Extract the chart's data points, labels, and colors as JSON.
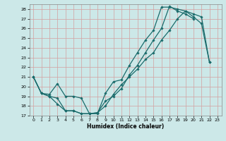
{
  "title": "",
  "xlabel": "Humidex (Indice chaleur)",
  "background_color": "#cce8e8",
  "grid_color": "#d4a0a0",
  "line_color": "#1a6b6b",
  "xlim": [
    -0.5,
    23.5
  ],
  "ylim": [
    17,
    28.5
  ],
  "yticks": [
    17,
    18,
    19,
    20,
    21,
    22,
    23,
    24,
    25,
    26,
    27,
    28
  ],
  "xticks": [
    0,
    1,
    2,
    3,
    4,
    5,
    6,
    7,
    8,
    9,
    10,
    11,
    12,
    13,
    14,
    15,
    16,
    17,
    18,
    19,
    20,
    21,
    22,
    23
  ],
  "series1_x": [
    0,
    1,
    2,
    3,
    4,
    5,
    6,
    7,
    8,
    9,
    10,
    11,
    12,
    13,
    14,
    15,
    16,
    17,
    18,
    19,
    20,
    21,
    22
  ],
  "series1_y": [
    21.0,
    19.3,
    19.2,
    20.3,
    19.0,
    19.0,
    18.8,
    17.2,
    17.2,
    19.3,
    20.5,
    20.7,
    22.2,
    23.5,
    24.8,
    25.8,
    28.2,
    28.2,
    28.0,
    27.8,
    27.5,
    27.2,
    22.5
  ],
  "series2_x": [
    0,
    1,
    2,
    3,
    4,
    5,
    6,
    7,
    8,
    9,
    10,
    11,
    12,
    13,
    14,
    15,
    16,
    17,
    18,
    19,
    20
  ],
  "series2_y": [
    21.0,
    19.3,
    19.0,
    18.2,
    17.5,
    17.5,
    17.2,
    17.2,
    17.3,
    18.5,
    19.0,
    19.8,
    21.2,
    22.2,
    23.5,
    24.8,
    26.0,
    28.3,
    27.8,
    27.5,
    27.0
  ],
  "series3_x": [
    0,
    1,
    2,
    3,
    4,
    5,
    6,
    7,
    8,
    9,
    10,
    11,
    12,
    13,
    14,
    15,
    16,
    17,
    18,
    19,
    20,
    21,
    22
  ],
  "series3_y": [
    21.0,
    19.3,
    19.0,
    18.8,
    17.5,
    17.5,
    17.2,
    17.2,
    17.3,
    18.0,
    19.2,
    20.2,
    21.0,
    21.8,
    22.8,
    23.5,
    24.8,
    25.8,
    27.0,
    27.8,
    27.2,
    26.5,
    22.5
  ]
}
